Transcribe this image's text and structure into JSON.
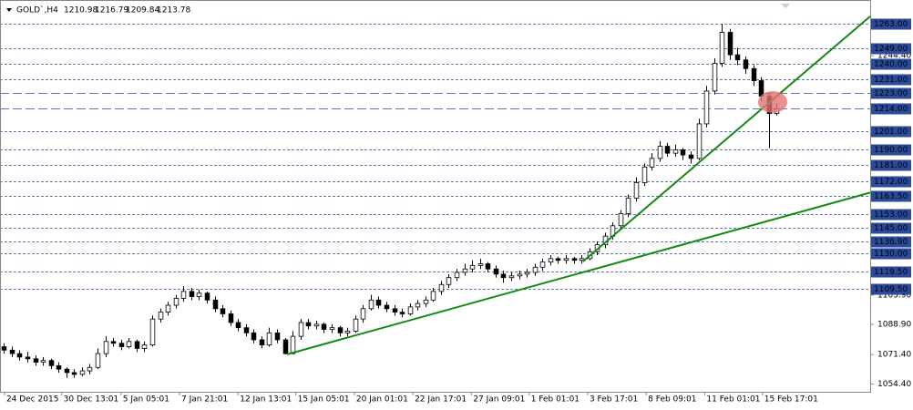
{
  "chart_data": {
    "type": "candlestick",
    "symbol": "GOLD`,H4",
    "up_color": "#ffffff",
    "down_color": "#000000",
    "level_color": "#2b4a9a",
    "xlim": [
      -0.5,
      111
    ],
    "ylim": [
      1049.9,
      1276.7
    ],
    "yticks": [
      {
        "value": 1244.4,
        "label": "1244.40"
      },
      {
        "value": 1105.9,
        "label": "1105.90"
      },
      {
        "value": 1088.9,
        "label": "1088.90"
      },
      {
        "value": 1071.4,
        "label": "1071.40"
      },
      {
        "value": 1054.4,
        "label": "1054.40"
      }
    ],
    "xticks": [
      {
        "value": 0.08,
        "label": "24 Dec 2015"
      },
      {
        "value": 7.4,
        "label": "30 Dec 13:01"
      },
      {
        "value": 15,
        "label": "5 Jan 05:01"
      },
      {
        "value": 22.5,
        "label": "7 Jan 21:01"
      },
      {
        "value": 30,
        "label": "12 Jan 13:01"
      },
      {
        "value": 37.4,
        "label": "15 Jan 05:01"
      },
      {
        "value": 44.9,
        "label": "20 Jan 01:01"
      },
      {
        "value": 52.4,
        "label": "22 Jan 17:01"
      },
      {
        "value": 59.9,
        "label": "27 Jan 09:01"
      },
      {
        "value": 67.3,
        "label": "1 Feb 01:01"
      },
      {
        "value": 74.8,
        "label": "3 Feb 17:01"
      },
      {
        "value": 82.3,
        "label": "8 Feb 09:01"
      },
      {
        "value": 89.8,
        "label": "11 Feb 01:01"
      },
      {
        "value": 97.2,
        "label": "15 Feb 17:01"
      }
    ],
    "levels": [
      {
        "value": 1263,
        "label": "1263.00",
        "style": "short"
      },
      {
        "value": 1249,
        "label": "1249.00",
        "style": "short"
      },
      {
        "value": 1240,
        "label": "1240.00",
        "style": "short"
      },
      {
        "value": 1231,
        "label": "1231.00",
        "style": "short"
      },
      {
        "value": 1223,
        "label": "1223.00",
        "style": "long"
      },
      {
        "value": 1214,
        "label": "1214.00",
        "style": "long"
      },
      {
        "value": 1201,
        "label": "1201.00",
        "style": "short"
      },
      {
        "value": 1190,
        "label": "1190.00",
        "style": "short"
      },
      {
        "value": 1181,
        "label": "1181.00",
        "style": "short"
      },
      {
        "value": 1172,
        "label": "1172.00",
        "style": "short"
      },
      {
        "value": 1163.5,
        "label": "1163.50",
        "style": "short"
      },
      {
        "value": 1153,
        "label": "1153.00",
        "style": "short"
      },
      {
        "value": 1145,
        "label": "1145.00",
        "style": "short"
      },
      {
        "value": 1136.9,
        "label": "1136.90",
        "style": "short"
      },
      {
        "value": 1130,
        "label": "1130.00",
        "style": "short"
      },
      {
        "value": 1119.5,
        "label": "1119.50",
        "style": "short"
      },
      {
        "value": 1109.5,
        "label": "1109.50",
        "style": "short"
      }
    ],
    "lines": [
      {
        "x": [
          36.3,
          111
        ],
        "y": [
          1071.6,
          1165.2
        ],
        "color": "#138a13"
      },
      {
        "x": [
          74.2,
          111
        ],
        "y": [
          1125.3,
          1267.2
        ],
        "color": "#138a13"
      }
    ],
    "ohlc": [
      [
        1076,
        1078,
        1072,
        1074
      ],
      [
        1074,
        1076,
        1070,
        1072
      ],
      [
        1072,
        1074,
        1068,
        1070
      ],
      [
        1070,
        1073,
        1067,
        1069
      ],
      [
        1069,
        1071,
        1065,
        1067
      ],
      [
        1067,
        1070,
        1065,
        1068
      ],
      [
        1068,
        1069,
        1063,
        1065
      ],
      [
        1065,
        1067,
        1061,
        1063
      ],
      [
        1063,
        1064,
        1058,
        1061
      ],
      [
        1061,
        1063,
        1058,
        1060
      ],
      [
        1060,
        1064,
        1059,
        1062
      ],
      [
        1062,
        1066,
        1060,
        1064
      ],
      [
        1064,
        1075,
        1063,
        1072
      ],
      [
        1072,
        1082,
        1070,
        1079
      ],
      [
        1079,
        1081,
        1076,
        1078
      ],
      [
        1078,
        1080,
        1074,
        1076
      ],
      [
        1076,
        1081,
        1075,
        1079
      ],
      [
        1079,
        1080,
        1073,
        1075
      ],
      [
        1075,
        1079,
        1073,
        1077
      ],
      [
        1077,
        1094,
        1076,
        1092
      ],
      [
        1092,
        1098,
        1090,
        1096
      ],
      [
        1096,
        1102,
        1094,
        1100
      ],
      [
        1100,
        1106,
        1098,
        1104
      ],
      [
        1104,
        1111,
        1102,
        1108
      ],
      [
        1108,
        1110,
        1103,
        1105
      ],
      [
        1105,
        1109,
        1103,
        1107
      ],
      [
        1107,
        1108,
        1101,
        1103
      ],
      [
        1103,
        1105,
        1096,
        1098
      ],
      [
        1098,
        1100,
        1093,
        1095
      ],
      [
        1095,
        1097,
        1088,
        1090
      ],
      [
        1090,
        1092,
        1085,
        1087
      ],
      [
        1087,
        1089,
        1082,
        1084
      ],
      [
        1084,
        1086,
        1078,
        1080
      ],
      [
        1080,
        1082,
        1075,
        1077
      ],
      [
        1077,
        1087,
        1076,
        1084
      ],
      [
        1084,
        1086,
        1078,
        1080
      ],
      [
        1080,
        1081,
        1071.5,
        1072
      ],
      [
        1072,
        1085,
        1071.5,
        1082
      ],
      [
        1082,
        1092,
        1080,
        1090
      ],
      [
        1090,
        1092,
        1086,
        1088
      ],
      [
        1088,
        1091,
        1086,
        1089
      ],
      [
        1089,
        1090,
        1084,
        1086
      ],
      [
        1086,
        1089,
        1084,
        1087
      ],
      [
        1087,
        1088,
        1082,
        1084
      ],
      [
        1084,
        1087,
        1082,
        1085
      ],
      [
        1085,
        1094,
        1084,
        1092
      ],
      [
        1092,
        1100,
        1090,
        1098
      ],
      [
        1098,
        1106,
        1097,
        1103
      ],
      [
        1103,
        1105,
        1098,
        1100
      ],
      [
        1100,
        1102,
        1096,
        1098
      ],
      [
        1098,
        1100,
        1094,
        1096
      ],
      [
        1096,
        1098,
        1093,
        1095
      ],
      [
        1095,
        1101,
        1094,
        1099
      ],
      [
        1099,
        1103,
        1097,
        1101
      ],
      [
        1101,
        1105,
        1099,
        1103
      ],
      [
        1103,
        1110,
        1102,
        1108
      ],
      [
        1108,
        1114,
        1106,
        1112
      ],
      [
        1112,
        1118,
        1110,
        1116
      ],
      [
        1116,
        1121,
        1114,
        1119
      ],
      [
        1119,
        1124,
        1117,
        1121
      ],
      [
        1121,
        1126,
        1119,
        1123
      ],
      [
        1123,
        1127,
        1121,
        1124
      ],
      [
        1124,
        1125,
        1119,
        1121
      ],
      [
        1121,
        1123,
        1116,
        1118
      ],
      [
        1118,
        1120,
        1113,
        1116
      ],
      [
        1116,
        1119,
        1114,
        1117
      ],
      [
        1117,
        1120,
        1115,
        1118
      ],
      [
        1118,
        1121,
        1116,
        1119
      ],
      [
        1119,
        1124,
        1117,
        1122
      ],
      [
        1122,
        1127,
        1120,
        1125
      ],
      [
        1125,
        1129,
        1123,
        1127
      ],
      [
        1127,
        1128,
        1124,
        1126
      ],
      [
        1126,
        1129,
        1124,
        1127
      ],
      [
        1127,
        1128,
        1124,
        1126
      ],
      [
        1126,
        1129,
        1124,
        1127
      ],
      [
        1127,
        1133,
        1126,
        1131
      ],
      [
        1131,
        1137,
        1129,
        1135
      ],
      [
        1135,
        1142,
        1133,
        1140
      ],
      [
        1140,
        1148,
        1138,
        1146
      ],
      [
        1146,
        1155,
        1144,
        1153
      ],
      [
        1153,
        1164,
        1151,
        1162
      ],
      [
        1162,
        1174,
        1160,
        1171
      ],
      [
        1171,
        1182,
        1169,
        1180
      ],
      [
        1180,
        1188,
        1178,
        1185
      ],
      [
        1185,
        1195,
        1183,
        1192
      ],
      [
        1192,
        1194,
        1186,
        1188
      ],
      [
        1188,
        1193,
        1186,
        1190
      ],
      [
        1190,
        1191,
        1184,
        1187
      ],
      [
        1187,
        1189,
        1182,
        1185
      ],
      [
        1185,
        1208,
        1184,
        1205
      ],
      [
        1205,
        1227,
        1203,
        1224
      ],
      [
        1224,
        1243,
        1222,
        1240
      ],
      [
        1240,
        1263,
        1238,
        1258
      ],
      [
        1258,
        1260,
        1242,
        1245
      ],
      [
        1245,
        1249,
        1239,
        1242
      ],
      [
        1242,
        1244,
        1234,
        1237
      ],
      [
        1237,
        1239,
        1227,
        1230
      ],
      [
        1230,
        1232,
        1218,
        1221
      ],
      [
        1221,
        1223,
        1191,
        1210.98
      ],
      [
        1210.98,
        1216.79,
        1209.84,
        1213.78
      ]
    ]
  }
}
